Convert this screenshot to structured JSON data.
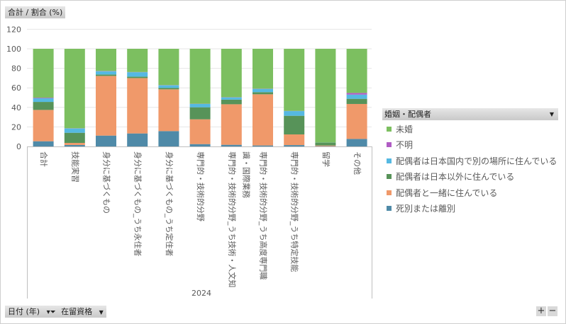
{
  "header": {
    "field_label": "合計 / 割合 (%)"
  },
  "footer": {
    "date_field": "日付 (年)",
    "status_field": "在留資格",
    "zoom_in": "+",
    "zoom_out": "−"
  },
  "legend": {
    "title": "婚姻・配偶者",
    "items": [
      {
        "label": "未婚",
        "color": "#7cbf60"
      },
      {
        "label": "不明",
        "color": "#b05cc4"
      },
      {
        "label": "配偶者は日本国内で別の場所に住んでいる",
        "color": "#55b9e2"
      },
      {
        "label": "配偶者は日本以外に住んでいる",
        "color": "#579359"
      },
      {
        "label": "配偶者と一緒に住んでいる",
        "color": "#f0996a"
      },
      {
        "label": "死別または離別",
        "color": "#4f8aa8"
      }
    ]
  },
  "chart_data": {
    "type": "bar",
    "stacked": true,
    "title": "",
    "xlabel": "2024",
    "ylabel": "",
    "ylim": [
      0,
      120
    ],
    "yticks": [
      "0",
      "20",
      "40",
      "60",
      "80",
      "100",
      "120"
    ],
    "categories": [
      "合計",
      "技能実習",
      "身分に基づくもの",
      "身分に基づくもの_うち永住者",
      "身分に基づくもの_うち定住者",
      "専門的・技術的分野",
      "専門的・技術的分野_うち技術・人文知識・国際業務",
      "専門的・技術的分野_うち高度専門職",
      "専門的・技術的分野_うち特定技能",
      "留学",
      "その他"
    ],
    "series": [
      {
        "name": "死別または離別",
        "color": "#4f8aa8",
        "values": [
          5.3,
          1.5,
          11.1,
          13.3,
          15.7,
          2.4,
          1.7,
          1.0,
          1.4,
          0.3,
          7.7
        ]
      },
      {
        "name": "配偶者と一緒に住んでいる",
        "color": "#f0996a",
        "values": [
          32.1,
          2.1,
          61.1,
          56.7,
          42.8,
          25.4,
          41.5,
          52.4,
          10.9,
          0.7,
          35.8
        ]
      },
      {
        "name": "配偶者は日本以外に住んでいる",
        "color": "#579359",
        "values": [
          8.2,
          10.4,
          1.5,
          1.5,
          1.5,
          12.3,
          4.8,
          2.2,
          19.1,
          2.9,
          5.3
        ]
      },
      {
        "name": "配偶者は日本国内で別の場所に住んでいる",
        "color": "#55b9e2",
        "values": [
          3.7,
          4.4,
          3.3,
          4.5,
          2.6,
          3.4,
          2.2,
          3.3,
          4.8,
          0.1,
          4.3
        ]
      },
      {
        "name": "不明",
        "color": "#b05cc4",
        "values": [
          0.6,
          0.2,
          0.3,
          0.2,
          0.2,
          0.2,
          0.2,
          0.2,
          0.2,
          0.0,
          1.7
        ]
      },
      {
        "name": "未婚",
        "color": "#7cbf60",
        "values": [
          50.1,
          81.4,
          22.7,
          23.8,
          37.2,
          56.3,
          49.6,
          40.9,
          63.6,
          96.0,
          45.2
        ]
      }
    ]
  }
}
